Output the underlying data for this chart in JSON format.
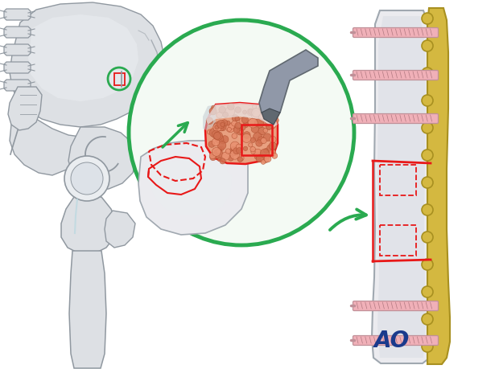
{
  "bg_color": "#ffffff",
  "fig_width": 6.2,
  "fig_height": 4.59,
  "dpi": 100,
  "ao_color": "#1a3a8c",
  "green_color": "#2aaa50",
  "red_color": "#e81818",
  "pink_screw": "#f0b0b8",
  "gold_plate": "#d4b840",
  "bone_color": "#ebebef",
  "bone_border": "#a0a8b0",
  "bone_inner": "#d8dce4",
  "graft_fill": "#e8a080",
  "graft_dot": "#c06040",
  "chisel_dark": "#606870",
  "chisel_light": "#9098a8",
  "skeleton_fill": "#dde0e4",
  "skeleton_border": "#9098a0",
  "skeleton_light": "#eaedf0",
  "light_blue": "#b8d8e0",
  "arrow_green": "#2aaa50",
  "plate_border": "#a89020",
  "screw_border": "#c09098"
}
